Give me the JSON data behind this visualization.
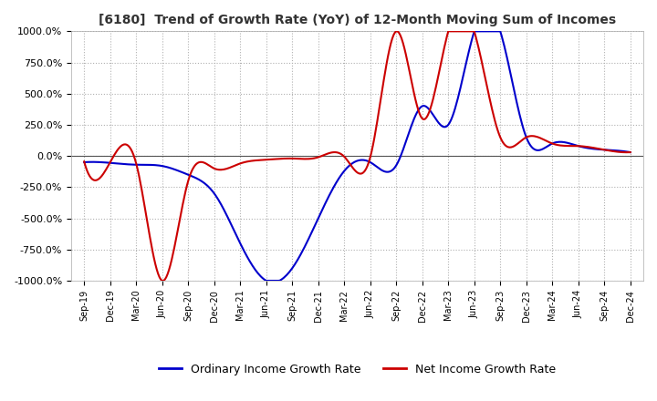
{
  "title": "[6180]  Trend of Growth Rate (YoY) of 12-Month Moving Sum of Incomes",
  "ylim": [
    -1000,
    1000
  ],
  "yticks": [
    -1000,
    -750,
    -500,
    -250,
    0,
    250,
    500,
    750,
    1000
  ],
  "yticklabels": [
    "-1000.0%",
    "-750.0%",
    "-500.0%",
    "-250.0%",
    "0.0%",
    "250.0%",
    "500.0%",
    "750.0%",
    "1000.0%"
  ],
  "background_color": "#ffffff",
  "grid_color": "#b0b0b0",
  "ordinary_color": "#0000cc",
  "net_color": "#cc0000",
  "legend_labels": [
    "Ordinary Income Growth Rate",
    "Net Income Growth Rate"
  ],
  "x_dates": [
    "Sep-19",
    "Dec-19",
    "Mar-20",
    "Jun-20",
    "Sep-20",
    "Dec-20",
    "Mar-21",
    "Jun-21",
    "Sep-21",
    "Dec-21",
    "Mar-22",
    "Jun-22",
    "Sep-22",
    "Dec-22",
    "Mar-23",
    "Jun-23",
    "Sep-23",
    "Dec-23",
    "Mar-24",
    "Jun-24",
    "Sep-24",
    "Dec-24"
  ],
  "ordinary_y": [
    -50,
    -55,
    -70,
    -80,
    -150,
    -300,
    -700,
    -1000,
    -900,
    -500,
    -120,
    -50,
    -75,
    400,
    250,
    1000,
    1000,
    150,
    100,
    80,
    50,
    30
  ],
  "net_y": [
    -45,
    -50,
    -60,
    -1000,
    -200,
    -100,
    -60,
    -30,
    -20,
    -10,
    -5,
    -10,
    1000,
    300,
    1000,
    1000,
    150,
    150,
    100,
    80,
    50,
    30
  ]
}
